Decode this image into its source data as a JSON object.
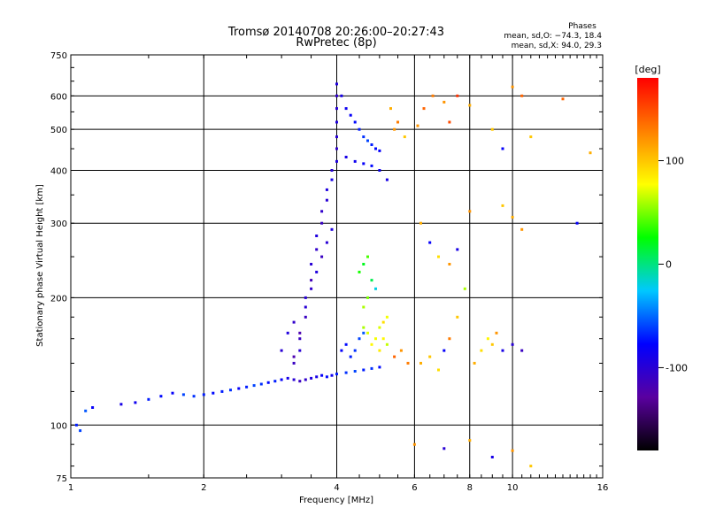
{
  "chart_data": {
    "type": "scatter",
    "title": "Tromsø 20140708 20:26:00–20:27:43",
    "subtitle": "RwPretec (8p)",
    "xlabel": "Frequency [MHz]",
    "ylabel": "Stationary phase Virtual Height [km]",
    "x_scale": "log",
    "y_scale": "log",
    "xlim": [
      1,
      16
    ],
    "ylim": [
      75,
      750
    ],
    "x_ticks": [
      1,
      2,
      4,
      6,
      8,
      10,
      16
    ],
    "y_ticks": [
      75,
      100,
      200,
      300,
      400,
      500,
      600,
      750
    ],
    "x_gridlines": [
      2,
      4,
      6,
      8,
      10
    ],
    "y_gridlines": [
      100,
      200,
      300,
      400,
      500,
      600
    ],
    "grid": true,
    "stats_header": "Phases",
    "stats_lines": [
      "mean, sd,O: −74.3, 18.4",
      "mean, sd,X:  94.0, 29.3"
    ],
    "colorbar": {
      "label": "[deg]",
      "min": -180,
      "max": 180,
      "ticks": [
        100,
        0,
        -100
      ],
      "colormap": [
        "#000000",
        "#5a00a0",
        "#0000ff",
        "#00c8ff",
        "#00ff00",
        "#ffff00",
        "#ff8000",
        "#ff0000"
      ]
    },
    "series": [
      {
        "points": [
          [
            1.03,
            100,
            -70
          ],
          [
            1.05,
            97,
            -60
          ],
          [
            1.08,
            108,
            -55
          ],
          [
            1.12,
            110,
            -80
          ],
          [
            1.3,
            112,
            -90
          ],
          [
            1.4,
            113,
            -85
          ],
          [
            1.5,
            115,
            -70
          ],
          [
            1.6,
            117,
            -75
          ],
          [
            1.7,
            119,
            -80
          ],
          [
            1.8,
            118,
            -60
          ],
          [
            1.9,
            117,
            -65
          ],
          [
            2.0,
            118,
            -70
          ],
          [
            2.1,
            119,
            -75
          ],
          [
            2.2,
            120,
            -70
          ],
          [
            2.3,
            121,
            -65
          ],
          [
            2.4,
            122,
            -80
          ],
          [
            2.5,
            123,
            -70
          ],
          [
            2.6,
            124,
            -60
          ],
          [
            2.7,
            125,
            -65
          ],
          [
            2.8,
            126,
            -75
          ],
          [
            2.9,
            127,
            -70
          ],
          [
            3.0,
            128,
            -80
          ],
          [
            3.1,
            129,
            -90
          ],
          [
            3.2,
            128,
            -100
          ],
          [
            3.3,
            127,
            -110
          ],
          [
            3.4,
            128,
            -105
          ],
          [
            3.5,
            129,
            -95
          ],
          [
            3.6,
            130,
            -90
          ],
          [
            3.7,
            131,
            -80
          ],
          [
            3.8,
            130,
            -75
          ],
          [
            3.9,
            131,
            -85
          ],
          [
            4.0,
            132,
            -70
          ],
          [
            4.2,
            133,
            -65
          ],
          [
            4.4,
            134,
            -60
          ],
          [
            4.6,
            135,
            -70
          ],
          [
            4.8,
            136,
            -65
          ],
          [
            5.0,
            137,
            -75
          ],
          [
            3.2,
            140,
            -110
          ],
          [
            3.3,
            150,
            -100
          ],
          [
            3.3,
            165,
            -120
          ],
          [
            3.4,
            180,
            -110
          ],
          [
            3.4,
            200,
            -100
          ],
          [
            3.5,
            220,
            -115
          ],
          [
            3.5,
            240,
            -100
          ],
          [
            3.6,
            260,
            -105
          ],
          [
            3.6,
            280,
            -95
          ],
          [
            3.7,
            300,
            -110
          ],
          [
            3.7,
            320,
            -105
          ],
          [
            3.8,
            340,
            -100
          ],
          [
            3.8,
            360,
            -95
          ],
          [
            3.9,
            380,
            -90
          ],
          [
            3.9,
            400,
            -100
          ],
          [
            4.0,
            420,
            -95
          ],
          [
            4.0,
            450,
            -105
          ],
          [
            4.0,
            480,
            -100
          ],
          [
            4.0,
            520,
            -95
          ],
          [
            4.0,
            560,
            -100
          ],
          [
            4.0,
            600,
            -105
          ],
          [
            4.0,
            640,
            -95
          ],
          [
            3.2,
            145,
            -120
          ],
          [
            3.3,
            160,
            -110
          ],
          [
            3.4,
            190,
            -100
          ],
          [
            3.5,
            210,
            -105
          ],
          [
            3.6,
            230,
            -95
          ],
          [
            3.7,
            250,
            -110
          ],
          [
            3.8,
            270,
            -100
          ],
          [
            3.9,
            290,
            -95
          ],
          [
            3.0,
            150,
            -100
          ],
          [
            3.1,
            165,
            -95
          ],
          [
            3.2,
            175,
            -105
          ],
          [
            4.1,
            600,
            -90
          ],
          [
            4.2,
            560,
            -85
          ],
          [
            4.3,
            540,
            -80
          ],
          [
            4.4,
            520,
            -75
          ],
          [
            4.5,
            500,
            -70
          ],
          [
            4.6,
            480,
            -65
          ],
          [
            4.7,
            470,
            -60
          ],
          [
            4.8,
            460,
            -70
          ],
          [
            4.9,
            450,
            -75
          ],
          [
            5.0,
            445,
            -80
          ],
          [
            4.2,
            430,
            -90
          ],
          [
            4.4,
            420,
            -85
          ],
          [
            4.6,
            415,
            -80
          ],
          [
            4.8,
            410,
            -75
          ],
          [
            5.0,
            400,
            -85
          ],
          [
            5.2,
            380,
            -90
          ],
          [
            4.1,
            150,
            -80
          ],
          [
            4.2,
            155,
            -75
          ],
          [
            4.3,
            145,
            -70
          ],
          [
            4.4,
            150,
            -65
          ],
          [
            4.5,
            160,
            -60
          ],
          [
            4.6,
            165,
            -55
          ],
          [
            4.6,
            170,
            60
          ],
          [
            4.7,
            165,
            70
          ],
          [
            4.8,
            155,
            80
          ],
          [
            4.9,
            160,
            75
          ],
          [
            5.0,
            150,
            85
          ],
          [
            5.0,
            170,
            70
          ],
          [
            5.1,
            175,
            90
          ],
          [
            5.1,
            160,
            80
          ],
          [
            5.2,
            155,
            65
          ],
          [
            5.2,
            180,
            75
          ],
          [
            4.5,
            230,
            30
          ],
          [
            4.6,
            240,
            20
          ],
          [
            4.7,
            250,
            40
          ],
          [
            4.8,
            220,
            10
          ],
          [
            4.9,
            210,
            -20
          ],
          [
            4.7,
            200,
            50
          ],
          [
            4.6,
            190,
            60
          ],
          [
            5.4,
            145,
            140
          ],
          [
            5.6,
            150,
            120
          ],
          [
            5.8,
            140,
            130
          ],
          [
            5.3,
            560,
            110
          ],
          [
            5.5,
            520,
            130
          ],
          [
            5.7,
            480,
            100
          ],
          [
            5.4,
            500,
            120
          ],
          [
            6.2,
            140,
            110
          ],
          [
            6.5,
            145,
            100
          ],
          [
            6.8,
            135,
            90
          ],
          [
            7.0,
            150,
            -80
          ],
          [
            7.2,
            160,
            130
          ],
          [
            7.5,
            180,
            100
          ],
          [
            7.8,
            210,
            60
          ],
          [
            8.2,
            140,
            110
          ],
          [
            8.5,
            150,
            90
          ],
          [
            8.8,
            160,
            80
          ],
          [
            9.0,
            155,
            100
          ],
          [
            9.2,
            165,
            120
          ],
          [
            9.5,
            150,
            -90
          ],
          [
            10.0,
            155,
            -100
          ],
          [
            10.5,
            150,
            -110
          ],
          [
            6.1,
            510,
            120
          ],
          [
            6.3,
            560,
            140
          ],
          [
            6.6,
            600,
            130
          ],
          [
            7.0,
            580,
            120
          ],
          [
            7.2,
            520,
            150
          ],
          [
            7.5,
            600,
            160
          ],
          [
            8.0,
            570,
            110
          ],
          [
            9.0,
            500,
            100
          ],
          [
            9.5,
            450,
            -80
          ],
          [
            10.0,
            630,
            120
          ],
          [
            10.5,
            600,
            140
          ],
          [
            11.0,
            480,
            100
          ],
          [
            13.0,
            590,
            140
          ],
          [
            15.0,
            440,
            110
          ],
          [
            6.2,
            300,
            110
          ],
          [
            6.5,
            270,
            -80
          ],
          [
            6.8,
            250,
            90
          ],
          [
            7.2,
            240,
            120
          ],
          [
            7.5,
            260,
            -90
          ],
          [
            8.0,
            320,
            120
          ],
          [
            9.5,
            330,
            100
          ],
          [
            10.0,
            310,
            110
          ],
          [
            10.5,
            290,
            120
          ],
          [
            14.0,
            300,
            -80
          ],
          [
            6.0,
            90,
            120
          ],
          [
            7.0,
            88,
            -100
          ],
          [
            8.0,
            92,
            110
          ],
          [
            9.0,
            84,
            -90
          ],
          [
            10.0,
            87,
            120
          ],
          [
            11.0,
            80,
            100
          ]
        ]
      }
    ]
  }
}
